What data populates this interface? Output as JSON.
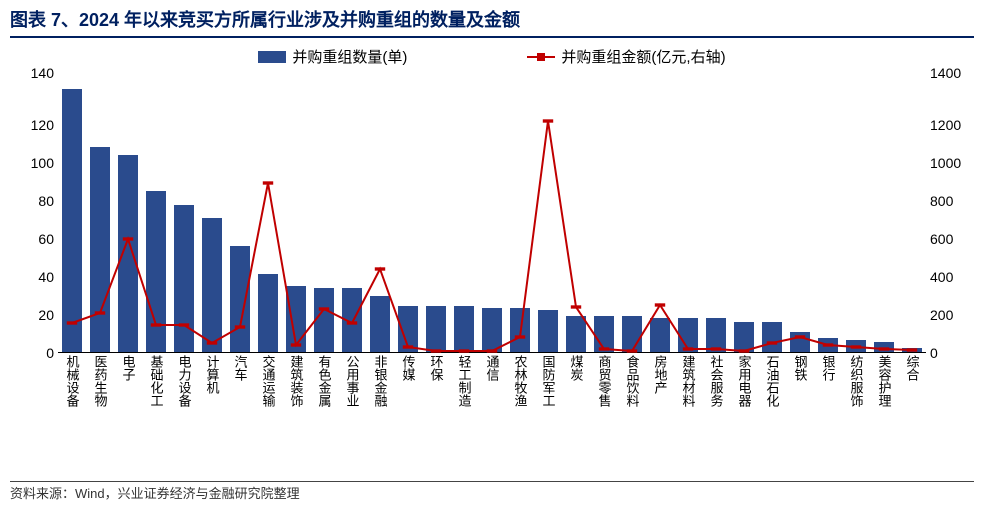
{
  "title": "图表 7、2024 年以来竞买方所属行业涉及并购重组的数量及金额",
  "legend": {
    "bar": "并购重组数量(单)",
    "line": "并购重组金额(亿元,右轴)"
  },
  "chart": {
    "type": "bar+line",
    "categories": [
      "机械设备",
      "医药生物",
      "电子",
      "基础化工",
      "电力设备",
      "计算机",
      "汽车",
      "交通运输",
      "建筑装饰",
      "有色金属",
      "公用事业",
      "非银金融",
      "传媒",
      "环保",
      "轻工制造",
      "通信",
      "农林牧渔",
      "国防军工",
      "煤炭",
      "商贸零售",
      "食品饮料",
      "房地产",
      "建筑材料",
      "社会服务",
      "家用电器",
      "石油石化",
      "钢铁",
      "银行",
      "纺织服饰",
      "美容护理",
      "综合"
    ],
    "bar_values": [
      132,
      103,
      99,
      81,
      74,
      67,
      53,
      39,
      33,
      32,
      32,
      28,
      23,
      23,
      23,
      22,
      22,
      21,
      18,
      18,
      18,
      17,
      17,
      17,
      15,
      15,
      10,
      7,
      6,
      5,
      2
    ],
    "line_values": [
      150,
      200,
      570,
      140,
      140,
      50,
      130,
      850,
      40,
      220,
      150,
      420,
      30,
      10,
      10,
      10,
      80,
      1160,
      230,
      20,
      10,
      240,
      20,
      20,
      10,
      50,
      80,
      40,
      30,
      20,
      15
    ],
    "left_axis": {
      "min": 0,
      "max": 140,
      "step": 20
    },
    "right_axis": {
      "min": 0,
      "max": 1400,
      "step": 200
    },
    "bar_color": "#2a4b8d",
    "line_color": "#c00000",
    "background_color": "#ffffff",
    "line_width": 2,
    "marker_size": 5,
    "title_color": "#002060",
    "title_fontsize": 18,
    "axis_fontsize": 14,
    "xlabel_fontsize": 13
  },
  "footer": "资料来源：Wind，兴业证券经济与金融研究院整理"
}
